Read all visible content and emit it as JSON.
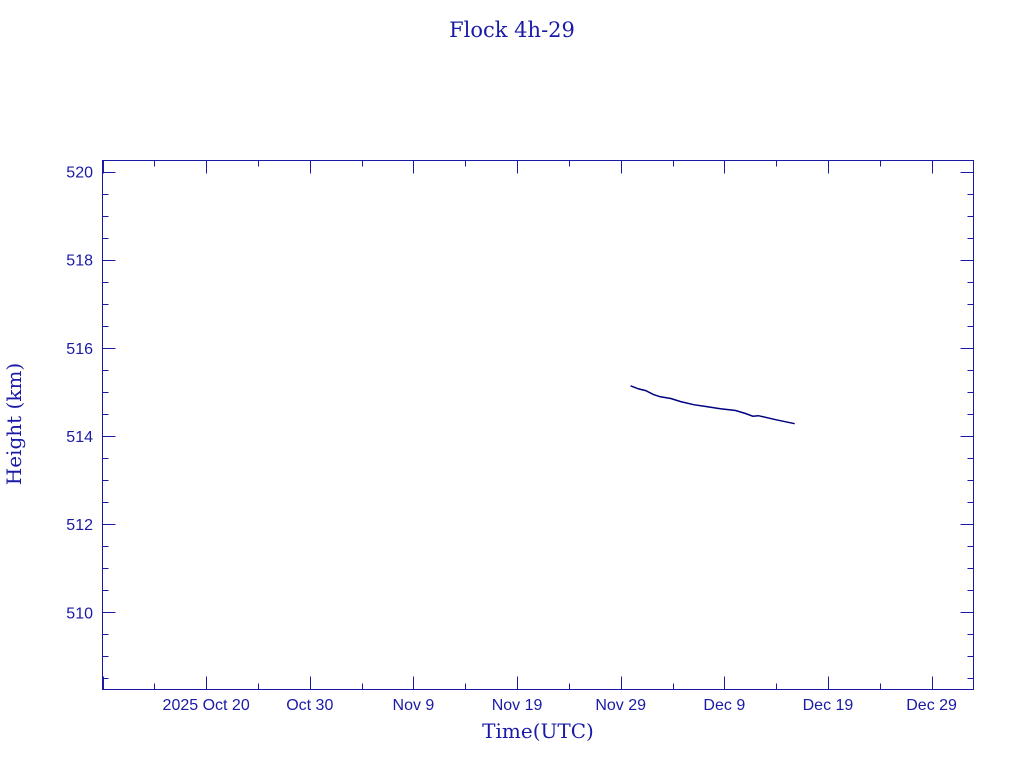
{
  "chart_data": {
    "type": "line",
    "title": "Flock 4h-29",
    "xlabel": "Time(UTC)",
    "ylabel": "Height (km)",
    "xlim": [
      "2025-10-10T00:00",
      "2026-01-02T01:00"
    ],
    "ylim": [
      508.25,
      520.25
    ],
    "x_tick_labels": [
      {
        "date": "2025-10-20",
        "label": "2025 Oct 20"
      },
      {
        "date": "2025-10-30",
        "label": "Oct 30"
      },
      {
        "date": "2025-11-09",
        "label": "Nov  9"
      },
      {
        "date": "2025-11-19",
        "label": "Nov 19"
      },
      {
        "date": "2025-11-29",
        "label": "Nov 29"
      },
      {
        "date": "2025-12-09",
        "label": "Dec  9"
      },
      {
        "date": "2025-12-19",
        "label": "Dec 19"
      },
      {
        "date": "2025-12-29",
        "label": "Dec 29"
      }
    ],
    "y_ticks": [
      510,
      512,
      514,
      516,
      518,
      520
    ],
    "grid": false,
    "colors": {
      "axes": "#1a1aa6",
      "line": "#000080"
    },
    "series": [
      {
        "x": [
          "2025-11-29T23:00",
          "2025-11-30T17:30",
          "2025-12-01T10:00",
          "2025-12-02T04:00",
          "2025-12-02T20:00",
          "2025-12-03T20:00",
          "2025-12-04T19:00",
          "2025-12-06T01:00",
          "2025-12-07T05:00",
          "2025-12-08T15:00",
          "2025-12-10T02:00",
          "2025-12-11T01:00",
          "2025-12-11T18:00",
          "2025-12-12T07:00",
          "2025-12-13T23:00",
          "2025-12-15T19:00"
        ],
        "y": [
          515.14,
          515.07,
          515.03,
          514.94,
          514.89,
          514.85,
          514.78,
          514.71,
          514.67,
          514.62,
          514.58,
          514.51,
          514.45,
          514.46,
          514.37,
          514.28
        ]
      }
    ]
  }
}
